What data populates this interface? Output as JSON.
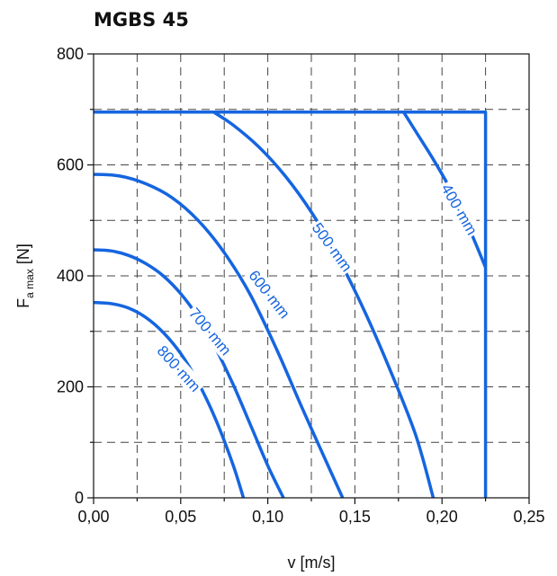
{
  "chart_data": {
    "type": "line",
    "title": "MGBS 45",
    "xlabel": "v [m/s]",
    "ylabel_main": "F",
    "ylabel_sub": "a max",
    "ylabel_unit": " [N]",
    "xlim": [
      0,
      0.25
    ],
    "ylim": [
      0,
      800
    ],
    "x_ticks": [
      0,
      0.05,
      0.1,
      0.15,
      0.2,
      0.25
    ],
    "x_tick_labels": [
      "0,00",
      "0,05",
      "0,10",
      "0,15",
      "0,20",
      "0,25"
    ],
    "y_ticks": [
      0,
      200,
      400,
      600,
      800
    ],
    "y_tick_labels": [
      "0",
      "200",
      "400",
      "600",
      "800"
    ],
    "grid": true,
    "color": "#1565e0",
    "envelope": {
      "points": [
        [
          0,
          695
        ],
        [
          0.225,
          695
        ],
        [
          0.225,
          0
        ]
      ]
    },
    "series": [
      {
        "name": "400 mm",
        "points": [
          [
            0.178,
            695
          ],
          [
            0.185,
            660
          ],
          [
            0.195,
            610
          ],
          [
            0.205,
            555
          ],
          [
            0.215,
            490
          ],
          [
            0.225,
            415
          ]
        ]
      },
      {
        "name": "500 mm",
        "points": [
          [
            0.069,
            695
          ],
          [
            0.08,
            672
          ],
          [
            0.095,
            632
          ],
          [
            0.11,
            580
          ],
          [
            0.125,
            515
          ],
          [
            0.14,
            435
          ],
          [
            0.155,
            340
          ],
          [
            0.17,
            232
          ],
          [
            0.185,
            112
          ],
          [
            0.195,
            0
          ]
        ]
      },
      {
        "name": "600 mm",
        "points": [
          [
            0,
            583
          ],
          [
            0.015,
            580
          ],
          [
            0.03,
            566
          ],
          [
            0.045,
            541
          ],
          [
            0.06,
            500
          ],
          [
            0.075,
            442
          ],
          [
            0.09,
            366
          ],
          [
            0.105,
            268
          ],
          [
            0.12,
            160
          ],
          [
            0.135,
            55
          ],
          [
            0.143,
            0
          ]
        ]
      },
      {
        "name": "700 mm",
        "points": [
          [
            0,
            447
          ],
          [
            0.01,
            445
          ],
          [
            0.02,
            437
          ],
          [
            0.03,
            422
          ],
          [
            0.04,
            400
          ],
          [
            0.05,
            368
          ],
          [
            0.06,
            325
          ],
          [
            0.07,
            270
          ],
          [
            0.08,
            205
          ],
          [
            0.09,
            132
          ],
          [
            0.1,
            58
          ],
          [
            0.109,
            0
          ]
        ]
      },
      {
        "name": "800 mm",
        "points": [
          [
            0,
            352
          ],
          [
            0.01,
            350
          ],
          [
            0.02,
            342
          ],
          [
            0.03,
            325
          ],
          [
            0.04,
            298
          ],
          [
            0.05,
            260
          ],
          [
            0.06,
            208
          ],
          [
            0.07,
            142
          ],
          [
            0.08,
            60
          ],
          [
            0.086,
            0
          ]
        ]
      }
    ],
    "curve_labels": [
      {
        "series": "400 mm",
        "text": "400·mm",
        "at": [
          0.21,
          520
        ],
        "angle": 60
      },
      {
        "series": "500 mm",
        "text": "500·mm",
        "at": [
          0.137,
          452
        ],
        "angle": 54
      },
      {
        "series": "600 mm",
        "text": "600·mm",
        "at": [
          0.101,
          367
        ],
        "angle": 52
      },
      {
        "series": "700 mm",
        "text": "700·mm",
        "at": [
          0.067,
          300
        ],
        "angle": 50
      },
      {
        "series": "800 mm",
        "text": "800·mm",
        "at": [
          0.049,
          233
        ],
        "angle": 48
      }
    ]
  }
}
